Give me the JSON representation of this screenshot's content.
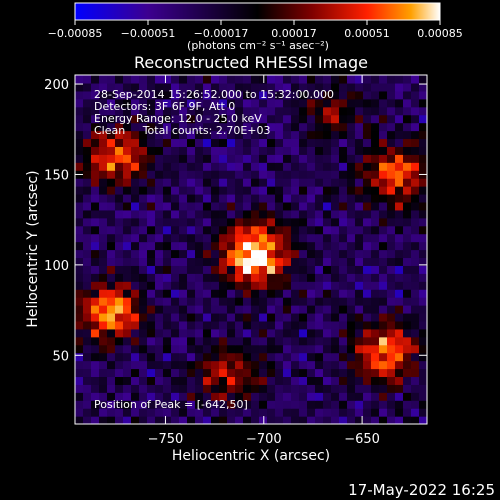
{
  "chart_data": {
    "type": "heatmap",
    "title": "Reconstructed RHESSI Image",
    "xlabel": "Heliocentric X (arcsec)",
    "ylabel": "Heliocentric Y (arcsec)",
    "xlim": [
      -796,
      -617
    ],
    "ylim": [
      12,
      205
    ],
    "x_ticks": [
      {
        "value": -750,
        "label": "−750"
      },
      {
        "value": -700,
        "label": "−700"
      },
      {
        "value": -650,
        "label": "−650"
      }
    ],
    "y_ticks": [
      {
        "value": 50,
        "label": "50"
      },
      {
        "value": 100,
        "label": "100"
      },
      {
        "value": 150,
        "label": "150"
      },
      {
        "value": 200,
        "label": "200"
      }
    ],
    "colorbar": {
      "min": -0.00085,
      "max": 0.00085,
      "ticks": [
        {
          "value": -0.00085,
          "label": "−0.00085"
        },
        {
          "value": -0.00051,
          "label": "−0.00051"
        },
        {
          "value": -0.00017,
          "label": "−0.00017"
        },
        {
          "value": 0.00017,
          "label": "0.00017"
        },
        {
          "value": 0.00051,
          "label": "0.00051"
        },
        {
          "value": 0.00085,
          "label": "0.00085"
        }
      ],
      "unit": "(photons cm⁻² s⁻¹ asec⁻²)",
      "colors": [
        "#0000ff",
        "#3c0090",
        "#000000",
        "#800000",
        "#ff2000",
        "#ffa000",
        "#ffffff"
      ]
    },
    "sources": [
      {
        "x": -704,
        "y": 106,
        "amp": 1.0,
        "width": 13
      },
      {
        "x": -778,
        "y": 74,
        "amp": 0.85,
        "width": 12
      },
      {
        "x": -775,
        "y": 160,
        "amp": 0.75,
        "width": 12
      },
      {
        "x": -632,
        "y": 150,
        "amp": 0.7,
        "width": 13
      },
      {
        "x": -638,
        "y": 52,
        "amp": 0.8,
        "width": 12
      },
      {
        "x": -718,
        "y": 40,
        "amp": 0.55,
        "width": 12
      },
      {
        "x": -665,
        "y": 185,
        "amp": 0.45,
        "width": 10
      }
    ],
    "peak": {
      "x": -642,
      "y": 50
    },
    "annotations": {
      "time_range": "28-Sep-2014 15:26:52.000 to 15:32:00.000",
      "detectors": "Detectors: 3F 6F 9F, Att 0",
      "energy": "Energy Range: 12.0 - 25.0 keV",
      "method": "Clean     Total counts: 2.70E+03",
      "peak_position": "Position of Peak = [-642,50]"
    }
  },
  "footer": {
    "date": "17-May-2022 16:25"
  }
}
